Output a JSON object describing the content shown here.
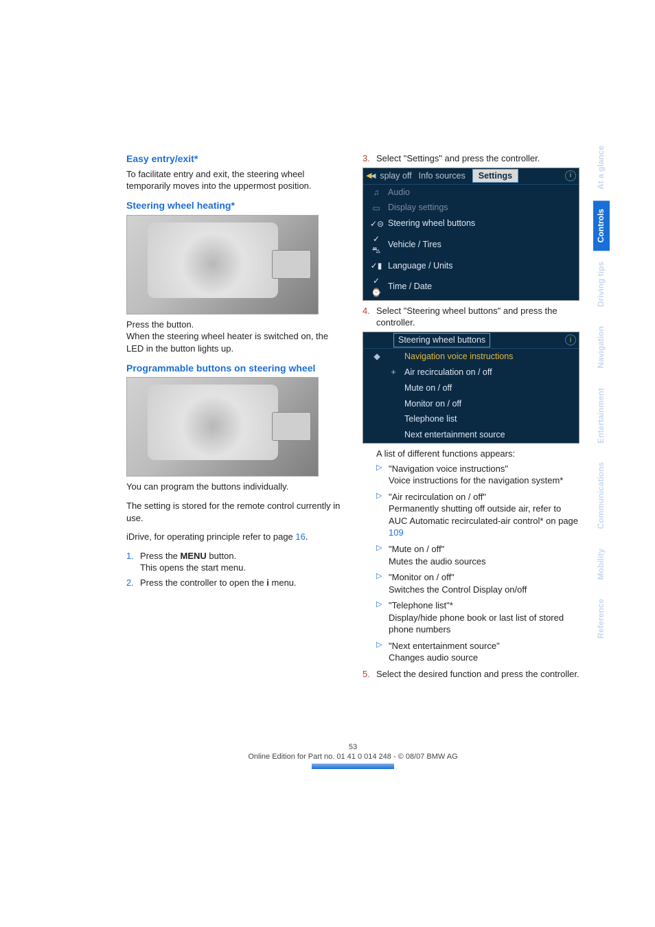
{
  "colors": {
    "heading": "#1a6fd6",
    "step_blue": "#1a6fd6",
    "step_red": "#c43a2a",
    "screen_bg": "#0a2a44",
    "screen_text": "#dfe6f0",
    "screen_dim": "#7a8aa0",
    "screen_highlight": "#e3b93f",
    "tab_active_bg": "#1a6fd6",
    "tab_inactive_text": "#c8d8ef"
  },
  "left": {
    "h1": "Easy entry/exit*",
    "p1": "To facilitate entry and exit, the steering wheel temporarily moves into the uppermost position.",
    "h2": "Steering wheel heating*",
    "p2a": "Press the button.",
    "p2b": "When the steering wheel heater is switched on, the LED in the button lights up.",
    "h3": "Programmable buttons on steering wheel",
    "p3a": "You can program the buttons individually.",
    "p3b": "The setting is stored for the remote control currently in use.",
    "p3c_pre": "iDrive, for operating principle refer to page ",
    "p3c_link": "16",
    "p3c_post": ".",
    "step1_num": "1.",
    "step1_a": "Press the ",
    "step1_b": "MENU",
    "step1_c": " button.",
    "step1_d": "This opens the start menu.",
    "step2_num": "2.",
    "step2_a": "Press the controller to open the ",
    "step2_b": "i",
    "step2_c": " menu."
  },
  "right": {
    "step3_num": "3.",
    "step3": "Select \"Settings\" and press the controller.",
    "screen1": {
      "hdr_left": "◄ splay off",
      "hdr_mid": "Info sources",
      "hdr_box": "Settings",
      "rows": [
        {
          "icon": "♫",
          "label": "Audio",
          "dim": true
        },
        {
          "icon": "▭",
          "label": "Display settings",
          "dim": true
        },
        {
          "icon": "✓⊝",
          "label": "Steering wheel buttons",
          "dim": false
        },
        {
          "icon": "✓⛍",
          "label": "Vehicle / Tires",
          "dim": false
        },
        {
          "icon": "✓▮",
          "label": "Language / Units",
          "dim": false
        },
        {
          "icon": "✓⌚",
          "label": "Time / Date",
          "dim": false
        }
      ]
    },
    "step4_num": "4.",
    "step4": "Select \"Steering wheel buttons\" and press the controller.",
    "screen2": {
      "hdr_box": "Steering wheel buttons",
      "rows": [
        {
          "icon": "",
          "label": "Navigation voice instructions",
          "hi": true
        },
        {
          "icon": "+",
          "label": "Air recirculation on / off",
          "hi": false
        },
        {
          "icon": "",
          "label": "Mute on / off",
          "hi": false
        },
        {
          "icon": "",
          "label": "Monitor on / off",
          "hi": false
        },
        {
          "icon": "",
          "label": "Telephone list",
          "hi": false
        },
        {
          "icon": "",
          "label": "Next entertainment source",
          "hi": false
        }
      ]
    },
    "list_intro": "A list of different functions appears:",
    "bullets": [
      {
        "t": "\"Navigation voice instructions\"",
        "d": "Voice instructions for the navigation system*"
      },
      {
        "t": "\"Air recirculation on / off\"",
        "d_pre": "Permanently shutting off outside air, refer to AUC Automatic recirculated-air control* on page ",
        "d_link": "109"
      },
      {
        "t": "\"Mute on / off\"",
        "d": "Mutes the audio sources"
      },
      {
        "t": "\"Monitor on / off\"",
        "d": "Switches the Control Display on/off"
      },
      {
        "t": "\"Telephone list\"*",
        "d": "Display/hide phone book or last list of stored phone numbers"
      },
      {
        "t": "\"Next entertainment source\"",
        "d": "Changes audio source"
      }
    ],
    "step5_num": "5.",
    "step5": "Select the desired function and press the controller."
  },
  "footer": {
    "page": "53",
    "line": "Online Edition for Part no. 01 41 0 014 248 - © 08/07 BMW AG"
  },
  "tabs": [
    {
      "label": "At a glance",
      "active": false
    },
    {
      "label": "Controls",
      "active": true
    },
    {
      "label": "Driving tips",
      "active": false
    },
    {
      "label": "Navigation",
      "active": false
    },
    {
      "label": "Entertainment",
      "active": false
    },
    {
      "label": "Communications",
      "active": false
    },
    {
      "label": "Mobility",
      "active": false
    },
    {
      "label": "Reference",
      "active": false
    }
  ]
}
